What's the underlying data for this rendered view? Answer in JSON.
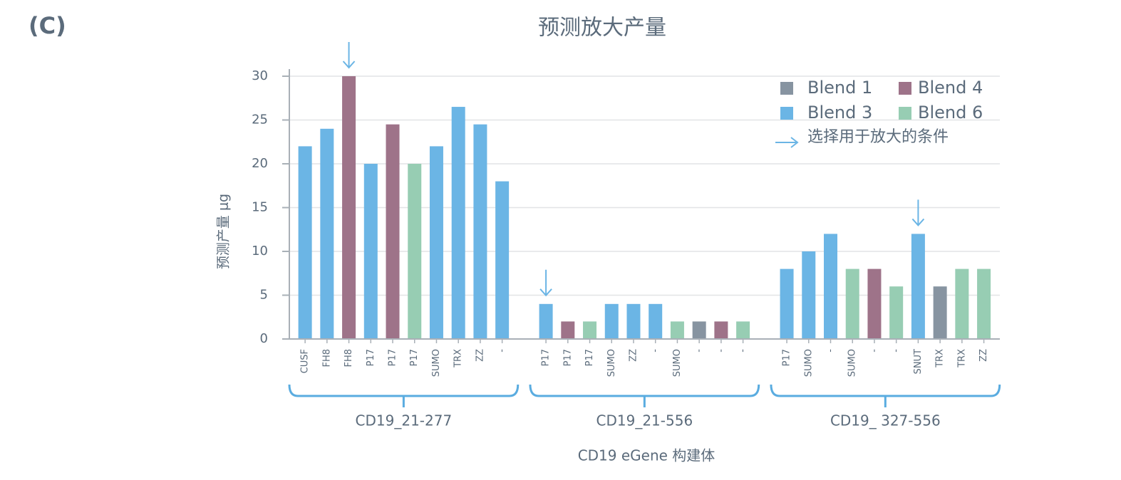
{
  "panel_label": "(C)",
  "chart_data": {
    "type": "bar",
    "title": "预测放大产量",
    "x_label": "CD19 eGene 构建体",
    "y_label": "预测产量  μg",
    "groups": [
      "CD19_21-277",
      "CD19_21-556",
      "CD19_ 327-556"
    ],
    "categories": [
      "CUSF",
      "FH8",
      "FH8",
      "P17",
      "P17",
      "P17",
      "SUMO",
      "TRX",
      "ZZ",
      "-",
      "P17",
      "P17",
      "P17",
      "SUMO",
      "ZZ",
      "-",
      "SUMO",
      "-",
      "-",
      "-",
      "P17",
      "SUMO",
      "-",
      "SUMO",
      "-",
      "-",
      "SNUT",
      "TRX",
      "TRX",
      "ZZ"
    ],
    "series": [
      {
        "name": "Blend 1",
        "color": "#8794a1",
        "values": [
          null,
          null,
          null,
          null,
          null,
          null,
          null,
          null,
          null,
          null,
          null,
          null,
          null,
          null,
          null,
          null,
          null,
          2,
          null,
          null,
          null,
          null,
          null,
          null,
          null,
          null,
          null,
          6,
          null,
          null
        ]
      },
      {
        "name": "Blend 3",
        "color": "#6bb5e5",
        "values": [
          22,
          24,
          null,
          20,
          null,
          null,
          22,
          26.5,
          24.5,
          18,
          4,
          null,
          null,
          4,
          4,
          4,
          null,
          null,
          null,
          null,
          8,
          10,
          12,
          null,
          null,
          null,
          12,
          null,
          null,
          null
        ]
      },
      {
        "name": "Blend 4",
        "color": "#9e7389",
        "values": [
          null,
          null,
          30,
          null,
          24.5,
          null,
          null,
          null,
          null,
          null,
          null,
          2,
          null,
          null,
          null,
          null,
          null,
          null,
          2,
          null,
          null,
          null,
          null,
          null,
          8,
          null,
          null,
          null,
          null,
          null
        ]
      },
      {
        "name": "Blend 6",
        "color": "#97cdb3",
        "values": [
          null,
          null,
          null,
          null,
          null,
          20,
          null,
          null,
          null,
          null,
          null,
          null,
          2,
          null,
          null,
          null,
          2,
          null,
          null,
          2,
          null,
          null,
          null,
          8,
          null,
          6,
          null,
          null,
          8,
          8
        ]
      }
    ],
    "selected_label": "选择用于放大的条件",
    "selected": [
      false,
      false,
      true,
      false,
      false,
      false,
      false,
      false,
      false,
      false,
      true,
      false,
      false,
      false,
      false,
      false,
      false,
      false,
      false,
      false,
      false,
      false,
      false,
      false,
      false,
      false,
      true,
      false,
      false,
      false
    ],
    "ylim": [
      0,
      30
    ],
    "yticks": [
      0,
      5,
      10,
      15,
      20,
      25,
      30
    ],
    "grid": true,
    "legend": "upper right"
  }
}
